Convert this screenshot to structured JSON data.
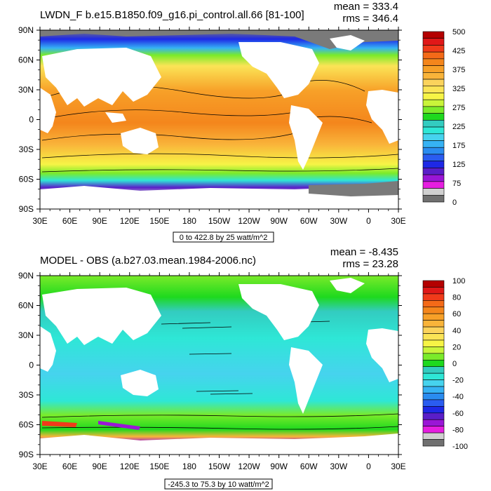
{
  "colors": {
    "ocean_top": "#fbd35c",
    "ocean_bottom": "#59e6c9",
    "land": "#ffffff",
    "sea_ice": "#7a7a7a"
  },
  "chart_data": [
    {
      "type": "heatmap",
      "title": "LWDN_F b.e15.B1850.f09_g16.pi_control.all.66 [81-100]",
      "stat_mean": "mean = 333.4",
      "stat_rms": "rms = 346.4",
      "footer": "0 to 422.8 by 25 watt/m^2",
      "x_ticks": [
        "30E",
        "60E",
        "90E",
        "120E",
        "150E",
        "180",
        "150W",
        "120W",
        "90W",
        "60W",
        "30W",
        "0",
        "30E"
      ],
      "y_ticks": [
        "90N",
        "60N",
        "30N",
        "0",
        "30S",
        "60S",
        "90S"
      ],
      "xlim": [
        30,
        390
      ],
      "ylim": [
        -90,
        90
      ],
      "grid": false,
      "legend": "right",
      "colorbar_labels": [
        "500",
        "425",
        "375",
        "325",
        "275",
        "225",
        "175",
        "125",
        "75",
        "0"
      ],
      "colorbar_colors": [
        "#b40000",
        "#e01818",
        "#f03a1a",
        "#f46a18",
        "#f4861c",
        "#f7a028",
        "#f9b43a",
        "#fbd35c",
        "#fbe456",
        "#f7f446",
        "#c9f43a",
        "#7aeb2a",
        "#1ed91e",
        "#33ccc0",
        "#2ee7d6",
        "#46d3ee",
        "#36b2f4",
        "#2a8cf0",
        "#2a5cf0",
        "#1e28e6",
        "#5a1ec8",
        "#9a16d6",
        "#e61ee0",
        "#d0d0d0",
        "#707070"
      ]
    },
    {
      "type": "heatmap",
      "title": "MODEL - OBS (a.b27.03.mean.1984-2006.nc)",
      "stat_mean": "mean = -8.435",
      "stat_rms": "rms = 23.28",
      "footer": "-245.3 to 75.3 by 10 watt/m^2",
      "x_ticks": [
        "30E",
        "60E",
        "90E",
        "120E",
        "150E",
        "180",
        "150W",
        "120W",
        "90W",
        "60W",
        "30W",
        "0",
        "30E"
      ],
      "y_ticks": [
        "90N",
        "60N",
        "30N",
        "0",
        "30S",
        "60S",
        "90S"
      ],
      "xlim": [
        30,
        390
      ],
      "ylim": [
        -90,
        90
      ],
      "grid": false,
      "legend": "right",
      "colorbar_labels": [
        "100",
        "80",
        "60",
        "40",
        "20",
        "0",
        "-20",
        "-40",
        "-60",
        "-80",
        "-100"
      ],
      "colorbar_colors": [
        "#b40000",
        "#e01818",
        "#f03a1a",
        "#f46a18",
        "#f4861c",
        "#f7a028",
        "#f9b43a",
        "#fbd35c",
        "#fbe456",
        "#f7f446",
        "#c9f43a",
        "#7aeb2a",
        "#1ed91e",
        "#33ccc0",
        "#2ee7d6",
        "#46d3ee",
        "#36b2f4",
        "#2a8cf0",
        "#2a5cf0",
        "#1e28e6",
        "#5a1ec8",
        "#9a16d6",
        "#e61ee0",
        "#d0d0d0",
        "#707070"
      ]
    }
  ]
}
